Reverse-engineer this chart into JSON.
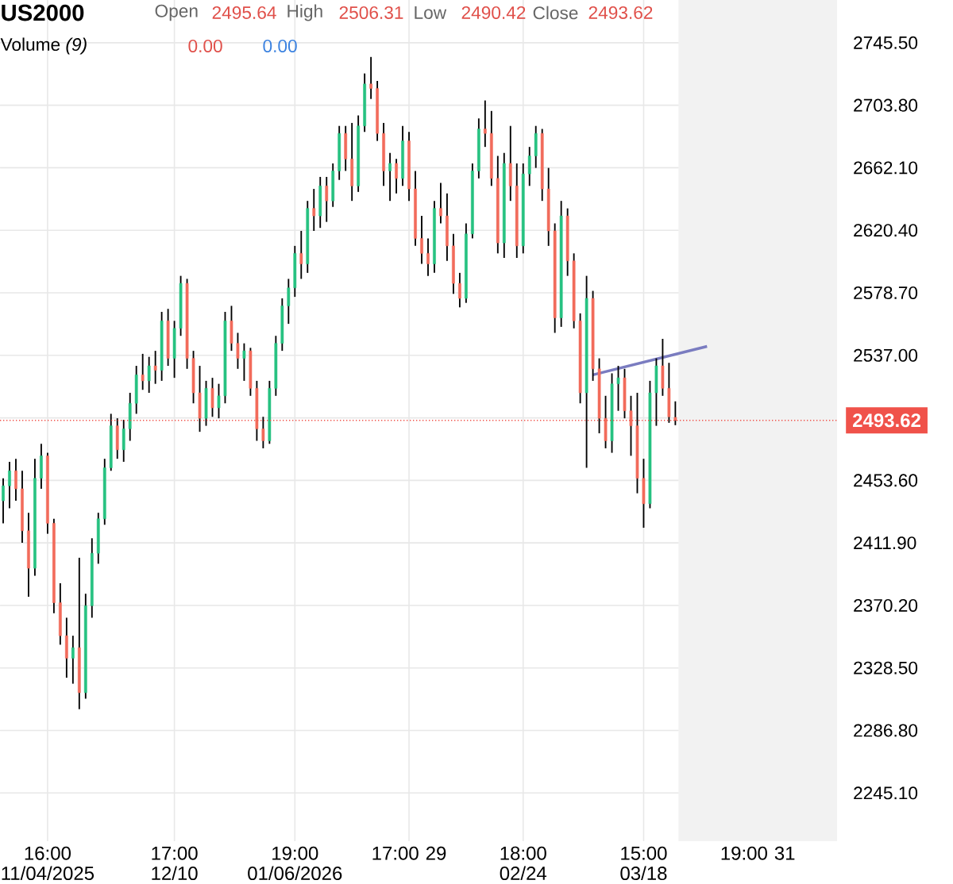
{
  "chart_data": {
    "type": "candlestick",
    "title": "US2000",
    "annotations": [
      "Open",
      "2495.64",
      "High",
      "2506.31",
      "Low",
      "2490.42",
      "Close",
      "2493.62",
      "Volume *(9)*",
      "0.00",
      "0.00"
    ],
    "categories": [
      null,
      null,
      null,
      null,
      null,
      null,
      null,
      "16:00 11/04/2025",
      null,
      null,
      null,
      null,
      null,
      null,
      null,
      null,
      null,
      null,
      null,
      null,
      null,
      null,
      null,
      null,
      null,
      null,
      null,
      "17:00 12/10",
      null,
      null,
      null,
      null,
      null,
      null,
      null,
      null,
      null,
      null,
      null,
      null,
      null,
      null,
      null,
      null,
      null,
      null,
      "19:00 01/06/2026",
      null,
      null,
      null,
      null,
      null,
      null,
      null,
      null,
      null,
      null,
      null,
      null,
      null,
      null,
      null,
      null,
      null,
      "17:00 29",
      null,
      null,
      null,
      null,
      null,
      null,
      null,
      null,
      null,
      null,
      null,
      null,
      null,
      null,
      null,
      null,
      null,
      "18:00 02/24",
      null,
      null,
      null,
      null,
      null,
      null,
      null,
      null,
      null,
      null,
      null,
      null,
      null,
      null,
      null,
      null,
      null,
      null,
      "15:00 03/18",
      null,
      null,
      null,
      null,
      null,
      null,
      null,
      null,
      null,
      null,
      null,
      null,
      null,
      null,
      null,
      null,
      null,
      "19:00 31",
      null,
      null,
      null,
      null,
      null,
      null,
      null,
      null,
      null,
      null,
      null,
      null
    ],
    "ohlc": [
      [
        2440,
        2455,
        2425,
        2450
      ],
      [
        2450,
        2466,
        2435,
        2460
      ],
      [
        2460,
        2468,
        2440,
        2448
      ],
      [
        2448,
        2460,
        2412,
        2420
      ],
      [
        2420,
        2432,
        2376,
        2395
      ],
      [
        2395,
        2468,
        2390,
        2455
      ],
      [
        2455,
        2478,
        2448,
        2470
      ],
      [
        2470,
        2472,
        2418,
        2425
      ],
      [
        2425,
        2428,
        2365,
        2372
      ],
      [
        2372,
        2385,
        2344,
        2350
      ],
      [
        2350,
        2362,
        2322,
        2335
      ],
      [
        2335,
        2350,
        2318,
        2342
      ],
      [
        2342,
        2402,
        2301,
        2312
      ],
      [
        2312,
        2378,
        2308,
        2370
      ],
      [
        2370,
        2415,
        2362,
        2405
      ],
      [
        2405,
        2432,
        2398,
        2428
      ],
      [
        2428,
        2468,
        2424,
        2462
      ],
      [
        2462,
        2498,
        2460,
        2490
      ],
      [
        2490,
        2495,
        2468,
        2474
      ],
      [
        2474,
        2494,
        2466,
        2488
      ],
      [
        2488,
        2512,
        2480,
        2505
      ],
      [
        2505,
        2530,
        2498,
        2524
      ],
      [
        2524,
        2538,
        2514,
        2520
      ],
      [
        2520,
        2536,
        2512,
        2530
      ],
      [
        2530,
        2540,
        2518,
        2527
      ],
      [
        2527,
        2566,
        2520,
        2560
      ],
      [
        2560,
        2568,
        2530,
        2535
      ],
      [
        2535,
        2560,
        2522,
        2555
      ],
      [
        2555,
        2590,
        2550,
        2585
      ],
      [
        2585,
        2588,
        2528,
        2535
      ],
      [
        2535,
        2540,
        2505,
        2512
      ],
      [
        2512,
        2530,
        2486,
        2495
      ],
      [
        2495,
        2520,
        2490,
        2515
      ],
      [
        2515,
        2522,
        2496,
        2502
      ],
      [
        2502,
        2518,
        2495,
        2510
      ],
      [
        2510,
        2566,
        2505,
        2560
      ],
      [
        2560,
        2570,
        2540,
        2545
      ],
      [
        2545,
        2552,
        2528,
        2535
      ],
      [
        2535,
        2545,
        2520,
        2540
      ],
      [
        2540,
        2542,
        2510,
        2515
      ],
      [
        2515,
        2520,
        2480,
        2488
      ],
      [
        2488,
        2496,
        2475,
        2480
      ],
      [
        2480,
        2520,
        2478,
        2515
      ],
      [
        2515,
        2550,
        2510,
        2545
      ],
      [
        2545,
        2575,
        2540,
        2570
      ],
      [
        2570,
        2588,
        2558,
        2582
      ],
      [
        2582,
        2610,
        2576,
        2605
      ],
      [
        2605,
        2620,
        2588,
        2598
      ],
      [
        2598,
        2640,
        2592,
        2635
      ],
      [
        2635,
        2648,
        2620,
        2630
      ],
      [
        2630,
        2656,
        2622,
        2650
      ],
      [
        2650,
        2656,
        2626,
        2640
      ],
      [
        2640,
        2665,
        2636,
        2660
      ],
      [
        2660,
        2690,
        2654,
        2685
      ],
      [
        2685,
        2690,
        2660,
        2668
      ],
      [
        2668,
        2692,
        2640,
        2650
      ],
      [
        2650,
        2697,
        2646,
        2690
      ],
      [
        2690,
        2725,
        2686,
        2718
      ],
      [
        2718,
        2736,
        2708,
        2715
      ],
      [
        2715,
        2720,
        2680,
        2685
      ],
      [
        2685,
        2692,
        2650,
        2660
      ],
      [
        2660,
        2672,
        2640,
        2665
      ],
      [
        2665,
        2668,
        2645,
        2655
      ],
      [
        2655,
        2690,
        2650,
        2680
      ],
      [
        2680,
        2686,
        2640,
        2648
      ],
      [
        2648,
        2660,
        2610,
        2615
      ],
      [
        2615,
        2630,
        2598,
        2605
      ],
      [
        2605,
        2615,
        2590,
        2598
      ],
      [
        2598,
        2640,
        2592,
        2635
      ],
      [
        2635,
        2652,
        2625,
        2630
      ],
      [
        2630,
        2645,
        2600,
        2610
      ],
      [
        2610,
        2618,
        2578,
        2585
      ],
      [
        2585,
        2592,
        2569,
        2575
      ],
      [
        2575,
        2625,
        2572,
        2618
      ],
      [
        2618,
        2665,
        2615,
        2660
      ],
      [
        2660,
        2695,
        2655,
        2688
      ],
      [
        2688,
        2707,
        2676,
        2685
      ],
      [
        2685,
        2700,
        2650,
        2655
      ],
      [
        2655,
        2670,
        2605,
        2612
      ],
      [
        2612,
        2672,
        2602,
        2665
      ],
      [
        2665,
        2690,
        2640,
        2650
      ],
      [
        2650,
        2665,
        2602,
        2610
      ],
      [
        2610,
        2665,
        2605,
        2658
      ],
      [
        2658,
        2676,
        2650,
        2670
      ],
      [
        2670,
        2690,
        2662,
        2685
      ],
      [
        2685,
        2688,
        2640,
        2648
      ],
      [
        2648,
        2662,
        2610,
        2620
      ],
      [
        2620,
        2625,
        2552,
        2562
      ],
      [
        2562,
        2640,
        2556,
        2630
      ],
      [
        2630,
        2635,
        2590,
        2600
      ],
      [
        2600,
        2605,
        2555,
        2560
      ],
      [
        2560,
        2565,
        2505,
        2512
      ],
      [
        2512,
        2590,
        2462,
        2575
      ],
      [
        2575,
        2580,
        2520,
        2528
      ],
      [
        2528,
        2535,
        2485,
        2495
      ],
      [
        2495,
        2510,
        2475,
        2480
      ],
      [
        2480,
        2525,
        2472,
        2518
      ],
      [
        2518,
        2530,
        2500,
        2522
      ],
      [
        2522,
        2528,
        2495,
        2500
      ],
      [
        2500,
        2510,
        2470,
        2490
      ],
      [
        2490,
        2512,
        2445,
        2455
      ],
      [
        2455,
        2468,
        2422,
        2438
      ],
      [
        2438,
        2520,
        2435,
        2512
      ],
      [
        2512,
        2535,
        2490,
        2530
      ],
      [
        2530,
        2548,
        2510,
        2515
      ],
      [
        2515,
        2532,
        2492,
        2496
      ],
      [
        2495.64,
        2506.31,
        2490.42,
        2493.62
      ],
      null,
      null,
      null,
      null,
      null,
      null,
      null,
      null,
      null,
      null,
      null,
      null,
      null,
      null,
      null,
      null,
      null,
      null,
      null,
      null,
      null,
      null,
      null,
      null,
      null
    ],
    "colors": [
      "#26c281",
      "#26c281",
      "#f26b5b",
      "#f26b5b",
      "#f26b5b",
      "#26c281",
      "#26c281",
      "#f26b5b",
      "#f26b5b",
      "#f26b5b",
      "#f26b5b",
      "#26c281",
      "#f26b5b",
      "#26c281",
      "#26c281",
      "#26c281",
      "#26c281",
      "#26c281",
      "#f26b5b",
      "#26c281",
      "#26c281",
      "#26c281",
      "#f26b5b",
      "#26c281",
      "#f26b5b",
      "#26c281",
      "#f26b5b",
      "#26c281",
      "#26c281",
      "#f26b5b",
      "#f26b5b",
      "#f26b5b",
      "#26c281",
      "#f26b5b",
      "#26c281",
      "#26c281",
      "#f26b5b",
      "#f26b5b",
      "#26c281",
      "#f26b5b",
      "#f26b5b",
      "#f26b5b",
      "#26c281",
      "#26c281",
      "#26c281",
      "#26c281",
      "#26c281",
      "#f26b5b",
      "#26c281",
      "#f26b5b",
      "#26c281",
      "#f26b5b",
      "#26c281",
      "#26c281",
      "#f26b5b",
      "#f26b5b",
      "#26c281",
      "#26c281",
      "#f26b5b",
      "#f26b5b",
      "#f26b5b",
      "#26c281",
      "#f26b5b",
      "#26c281",
      "#f26b5b",
      "#f26b5b",
      "#f26b5b",
      "#f26b5b",
      "#26c281",
      "#f26b5b",
      "#f26b5b",
      "#f26b5b",
      "#f26b5b",
      "#26c281",
      "#26c281",
      "#26c281",
      "#f26b5b",
      "#f26b5b",
      "#f26b5b",
      "#26c281",
      "#f26b5b",
      "#f26b5b",
      "#26c281",
      "#26c281",
      "#26c281",
      "#f26b5b",
      "#f26b5b",
      "#f26b5b",
      "#26c281",
      "#f26b5b",
      "#f26b5b",
      "#f26b5b",
      "#26c281",
      "#f26b5b",
      "#f26b5b",
      "#f26b5b",
      "#26c281",
      "#26c281",
      "#f26b5b",
      "#f26b5b",
      "#f26b5b",
      "#f26b5b",
      "#26c281",
      "#26c281",
      "#f26b5b",
      "#f26b5b",
      "#f26b5b",
      null,
      null,
      null,
      null,
      null,
      null,
      null,
      null,
      null,
      null,
      null,
      null,
      null,
      null,
      null,
      null,
      null,
      null,
      null,
      null,
      null,
      null,
      null,
      null,
      null
    ],
    "series": [
      {
        "type": "line",
        "color": "#7a7cc0",
        "values": [
          null,
          null,
          null,
          null,
          null,
          null,
          null,
          null,
          null,
          null,
          null,
          null,
          null,
          null,
          null,
          null,
          null,
          null,
          null,
          null,
          null,
          null,
          null,
          null,
          null,
          null,
          null,
          null,
          null,
          null,
          null,
          null,
          null,
          null,
          null,
          null,
          null,
          null,
          null,
          null,
          null,
          null,
          null,
          null,
          null,
          null,
          null,
          null,
          null,
          null,
          null,
          null,
          null,
          null,
          null,
          null,
          null,
          null,
          null,
          null,
          null,
          null,
          null,
          null,
          null,
          null,
          null,
          null,
          null,
          null,
          null,
          null,
          null,
          null,
          null,
          null,
          null,
          null,
          null,
          null,
          null,
          null,
          null,
          null,
          null,
          null,
          null,
          null,
          null,
          null,
          null,
          null,
          null,
          2524,
          null,
          null,
          null,
          null,
          null,
          null,
          null,
          null,
          null,
          null,
          null,
          null,
          null,
          null,
          null,
          null,
          null,
          2543,
          null,
          null,
          null,
          null,
          null,
          null,
          null,
          null,
          null,
          null,
          null,
          null,
          null,
          null,
          null,
          null,
          null,
          null,
          null,
          null
        ]
      }
    ],
    "ylim": [
      2213,
      2774
    ],
    "yticks": [
      {
        "value": 2245.1,
        "label": "2245.10"
      },
      {
        "value": 2286.8,
        "label": "2286.80"
      },
      {
        "value": 2328.5,
        "label": "2328.50"
      },
      {
        "value": 2370.2,
        "label": "2370.20"
      },
      {
        "value": 2411.9,
        "label": "2411.90"
      },
      {
        "value": 2453.6,
        "label": "2453.60"
      },
      {
        "value": 2495.3,
        "label": null
      },
      {
        "value": 2537,
        "label": "2537.00"
      },
      {
        "value": 2578.7,
        "label": "2578.70"
      },
      {
        "value": 2620.4,
        "label": "2620.40"
      },
      {
        "value": 2662.1,
        "label": "2662.10"
      },
      {
        "value": 2703.8,
        "label": "2703.80"
      },
      {
        "value": 2745.5,
        "label": "2745.50"
      }
    ],
    "ref_lines": [
      {
        "axis": "y",
        "value": 2493.62,
        "label": "2493.62",
        "color": "#f0524a"
      }
    ],
    "grid": true
  }
}
